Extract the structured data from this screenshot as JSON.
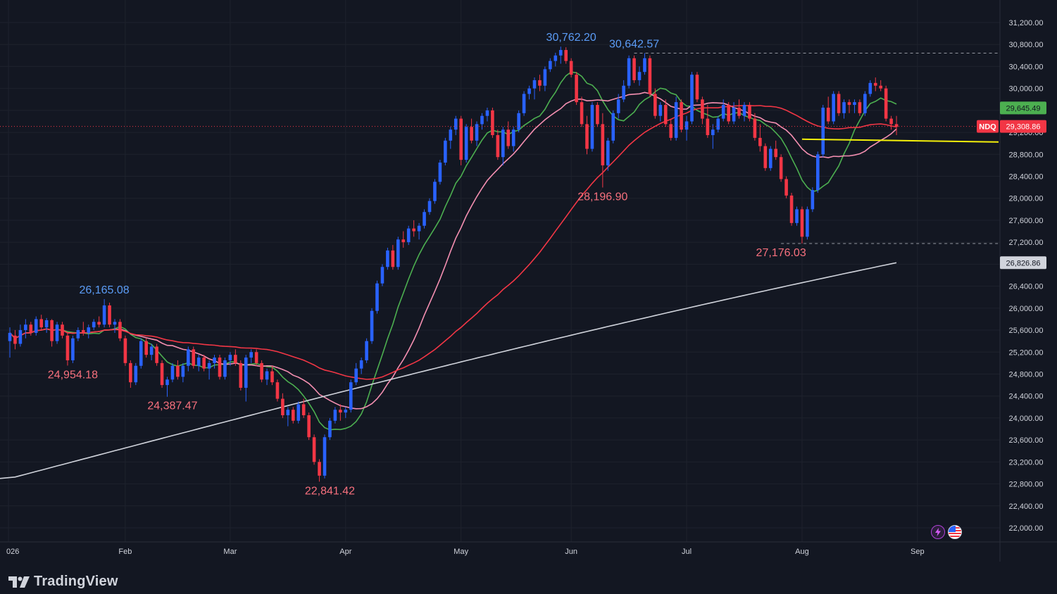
{
  "brand": {
    "name": "TradingView",
    "logo": "tradingview-logo-icon"
  },
  "symbol": "NDQ",
  "price_axis": {
    "ticks": [
      "31,200.00",
      "30,800.00",
      "30,400.00",
      "30,000.00",
      "29,600.00",
      "29,200.00",
      "28,800.00",
      "28,400.00",
      "28,000.00",
      "27,600.00",
      "27,200.00",
      "26,800.00",
      "26,400.00",
      "26,000.00",
      "25,600.00",
      "25,200.00",
      "24,800.00",
      "24,400.00",
      "24,000.00",
      "23,600.00",
      "23,200.00",
      "22,800.00",
      "22,400.00",
      "22,000.00"
    ],
    "tick_values": [
      31200,
      30800,
      30400,
      30000,
      29600,
      29200,
      28800,
      28400,
      28000,
      27600,
      27200,
      26800,
      26400,
      26000,
      25600,
      25200,
      24800,
      24400,
      24000,
      23600,
      23200,
      22800,
      22400,
      22000
    ],
    "tags": [
      {
        "label": "29,645.49",
        "value": 29645.49,
        "color": "#4caf50",
        "text_color": "#131722"
      },
      {
        "label": "29,308.86",
        "value": 29308.86,
        "color": "#f23645",
        "text_color": "#ffffff"
      },
      {
        "label": "26,826.86",
        "value": 26826.86,
        "color": "#d1d4dc",
        "text_color": "#131722"
      }
    ]
  },
  "time_axis": {
    "labels": [
      "026",
      "Feb",
      "Mar",
      "Apr",
      "May",
      "Jun",
      "Jul",
      "Aug",
      "Sep"
    ],
    "bar_index": [
      0,
      22,
      42,
      64,
      86,
      107,
      129,
      151,
      173
    ]
  },
  "annotations": [
    {
      "text": "26,165.08",
      "bar": 18,
      "value": 26165.08,
      "color": "#5b9cf6",
      "pos": "above"
    },
    {
      "text": "24,954.18",
      "bar": 12,
      "value": 24954.18,
      "color": "#f7707d",
      "pos": "below"
    },
    {
      "text": "24,387.47",
      "bar": 31,
      "value": 24387.47,
      "color": "#f7707d",
      "pos": "below"
    },
    {
      "text": "22,841.42",
      "bar": 61,
      "value": 22841.42,
      "color": "#f7707d",
      "pos": "below"
    },
    {
      "text": "30,762.20",
      "bar": 107,
      "value": 30762.2,
      "color": "#5b9cf6",
      "pos": "above"
    },
    {
      "text": "30,642.57",
      "bar": 119,
      "value": 30642.57,
      "color": "#5b9cf6",
      "pos": "above"
    },
    {
      "text": "28,196.90",
      "bar": 113,
      "value": 28196.9,
      "color": "#f7707d",
      "pos": "below"
    },
    {
      "text": "27,176.03",
      "bar": 147,
      "value": 27176.03,
      "color": "#f7707d",
      "pos": "below"
    }
  ],
  "colors": {
    "background": "#131722",
    "grid": "#1e222d",
    "up": "#2962ff",
    "down": "#f23645",
    "axis_text": "#d1d4dc",
    "support": "#f5f10a"
  },
  "icons": [
    "lightning-icon",
    "us-flag-icon"
  ],
  "chart_data": {
    "type": "candlestick",
    "title": "",
    "ylim": [
      21800,
      31500
    ],
    "ohlc": [
      [
        25400,
        25650,
        25100,
        25550
      ],
      [
        25500,
        25600,
        25250,
        25350
      ],
      [
        25350,
        25700,
        25300,
        25600
      ],
      [
        25600,
        25800,
        25450,
        25700
      ],
      [
        25700,
        25750,
        25500,
        25550
      ],
      [
        25550,
        25850,
        25500,
        25800
      ],
      [
        25800,
        25880,
        25600,
        25650
      ],
      [
        25650,
        25820,
        25550,
        25780
      ],
      [
        25780,
        25800,
        25300,
        25400
      ],
      [
        25400,
        25750,
        25350,
        25700
      ],
      [
        25700,
        25750,
        25450,
        25500
      ],
      [
        25500,
        25550,
        24954,
        25050
      ],
      [
        25050,
        25500,
        25000,
        25450
      ],
      [
        25450,
        25650,
        25400,
        25600
      ],
      [
        25600,
        25750,
        25500,
        25550
      ],
      [
        25550,
        25700,
        25450,
        25650
      ],
      [
        25650,
        25800,
        25600,
        25750
      ],
      [
        25750,
        25850,
        25650,
        25700
      ],
      [
        25700,
        26165,
        25650,
        26050
      ],
      [
        26050,
        26100,
        25650,
        25700
      ],
      [
        25700,
        25800,
        25550,
        25750
      ],
      [
        25750,
        25800,
        25400,
        25450
      ],
      [
        25450,
        25500,
        24950,
        25000
      ],
      [
        25000,
        25050,
        24550,
        24650
      ],
      [
        24650,
        25000,
        24600,
        24950
      ],
      [
        24950,
        25450,
        24900,
        25400
      ],
      [
        25400,
        25450,
        25100,
        25150
      ],
      [
        25150,
        25350,
        25050,
        25300
      ],
      [
        25300,
        25350,
        24950,
        25000
      ],
      [
        25000,
        25050,
        24550,
        24600
      ],
      [
        24600,
        24750,
        24387,
        24700
      ],
      [
        24700,
        25000,
        24650,
        24950
      ],
      [
        24950,
        25050,
        24700,
        24750
      ],
      [
        24750,
        25000,
        24650,
        24950
      ],
      [
        24950,
        25300,
        24850,
        25250
      ],
      [
        25250,
        25300,
        24900,
        24950
      ],
      [
        24950,
        25150,
        24850,
        25100
      ],
      [
        25100,
        25150,
        24850,
        24900
      ],
      [
        24900,
        25050,
        24700,
        25000
      ],
      [
        25000,
        25150,
        24900,
        25100
      ],
      [
        25100,
        25150,
        24700,
        24750
      ],
      [
        24750,
        25100,
        24700,
        25050
      ],
      [
        25050,
        25200,
        24950,
        25150
      ],
      [
        25150,
        25250,
        24950,
        25000
      ],
      [
        25000,
        25050,
        24500,
        24550
      ],
      [
        24550,
        25150,
        24300,
        25100
      ],
      [
        25100,
        25250,
        25000,
        25200
      ],
      [
        25200,
        25250,
        24950,
        25000
      ],
      [
        25000,
        25050,
        24650,
        24700
      ],
      [
        24700,
        24900,
        24600,
        24850
      ],
      [
        24850,
        24950,
        24600,
        24650
      ],
      [
        24650,
        24700,
        24300,
        24350
      ],
      [
        24350,
        24450,
        24000,
        24050
      ],
      [
        24050,
        24200,
        23850,
        24150
      ],
      [
        24150,
        24200,
        23900,
        23950
      ],
      [
        23950,
        24300,
        23900,
        24250
      ],
      [
        24250,
        24350,
        24000,
        24050
      ],
      [
        24050,
        24100,
        23600,
        23650
      ],
      [
        23650,
        23700,
        23150,
        23200
      ],
      [
        23200,
        23250,
        22841,
        22950
      ],
      [
        22950,
        23700,
        22900,
        23650
      ],
      [
        23650,
        24000,
        23600,
        23950
      ],
      [
        23950,
        24200,
        23900,
        24150
      ],
      [
        24150,
        24250,
        23950,
        24100
      ],
      [
        24100,
        24200,
        24000,
        24150
      ],
      [
        24150,
        24700,
        24100,
        24650
      ],
      [
        24650,
        25000,
        24600,
        24900
      ],
      [
        24900,
        25100,
        24800,
        25050
      ],
      [
        25050,
        25450,
        25000,
        25400
      ],
      [
        25400,
        26000,
        25350,
        25950
      ],
      [
        25950,
        26500,
        25900,
        26450
      ],
      [
        26450,
        26800,
        26400,
        26750
      ],
      [
        26750,
        27100,
        26700,
        27050
      ],
      [
        27050,
        27150,
        26700,
        26750
      ],
      [
        26750,
        27300,
        26700,
        27250
      ],
      [
        27250,
        27400,
        27100,
        27200
      ],
      [
        27200,
        27500,
        27150,
        27450
      ],
      [
        27450,
        27600,
        27300,
        27400
      ],
      [
        27400,
        27550,
        27250,
        27500
      ],
      [
        27500,
        27800,
        27450,
        27750
      ],
      [
        27750,
        28000,
        27700,
        27950
      ],
      [
        27950,
        28350,
        27900,
        28300
      ],
      [
        28300,
        28700,
        28250,
        28650
      ],
      [
        28650,
        29100,
        28600,
        29050
      ],
      [
        29050,
        29300,
        28900,
        29250
      ],
      [
        29250,
        29500,
        29150,
        29450
      ],
      [
        29450,
        29500,
        28600,
        28700
      ],
      [
        28700,
        29350,
        28650,
        29300
      ],
      [
        29300,
        29450,
        29000,
        29050
      ],
      [
        29050,
        29400,
        28950,
        29350
      ],
      [
        29350,
        29550,
        29250,
        29500
      ],
      [
        29500,
        29650,
        29400,
        29600
      ],
      [
        29600,
        29650,
        29100,
        29150
      ],
      [
        29150,
        29250,
        28700,
        28750
      ],
      [
        28750,
        29300,
        28600,
        29250
      ],
      [
        29250,
        29400,
        28900,
        28950
      ],
      [
        28950,
        29300,
        28850,
        29250
      ],
      [
        29250,
        29600,
        29200,
        29550
      ],
      [
        29550,
        29950,
        29500,
        29900
      ],
      [
        29900,
        30050,
        29800,
        30000
      ],
      [
        30000,
        30200,
        29800,
        30150
      ],
      [
        30150,
        30250,
        29950,
        30050
      ],
      [
        30050,
        30400,
        29950,
        30350
      ],
      [
        30350,
        30550,
        30300,
        30500
      ],
      [
        30500,
        30650,
        30400,
        30600
      ],
      [
        30600,
        30762,
        30450,
        30700
      ],
      [
        30700,
        30750,
        30450,
        30500
      ],
      [
        30500,
        30550,
        30200,
        30250
      ],
      [
        30250,
        30300,
        29700,
        29750
      ],
      [
        29750,
        29850,
        29300,
        29350
      ],
      [
        29350,
        29500,
        28800,
        28900
      ],
      [
        28900,
        29750,
        28850,
        29700
      ],
      [
        29700,
        29750,
        29300,
        29350
      ],
      [
        29350,
        29550,
        28196,
        28600
      ],
      [
        28600,
        29100,
        28500,
        29050
      ],
      [
        29050,
        29600,
        29000,
        29550
      ],
      [
        29550,
        29900,
        29450,
        29800
      ],
      [
        29800,
        30150,
        29750,
        30050
      ],
      [
        30050,
        30600,
        30000,
        30550
      ],
      [
        30550,
        30600,
        30100,
        30150
      ],
      [
        30150,
        30400,
        30050,
        30300
      ],
      [
        30300,
        30642,
        30250,
        30550
      ],
      [
        30550,
        30600,
        29850,
        29900
      ],
      [
        29900,
        30000,
        29450,
        29500
      ],
      [
        29500,
        29750,
        29400,
        29700
      ],
      [
        29700,
        29800,
        29300,
        29350
      ],
      [
        29350,
        29450,
        29050,
        29100
      ],
      [
        29100,
        29850,
        29050,
        29750
      ],
      [
        29750,
        29800,
        29200,
        29250
      ],
      [
        29250,
        29500,
        29050,
        29400
      ],
      [
        29400,
        30300,
        29350,
        30250
      ],
      [
        30250,
        30300,
        29750,
        29800
      ],
      [
        29800,
        29850,
        29350,
        29450
      ],
      [
        29450,
        29700,
        29100,
        29150
      ],
      [
        29150,
        29350,
        28900,
        29250
      ],
      [
        29250,
        29500,
        29200,
        29450
      ],
      [
        29450,
        29800,
        29400,
        29700
      ],
      [
        29700,
        29750,
        29350,
        29400
      ],
      [
        29400,
        29750,
        29350,
        29650
      ],
      [
        29650,
        29800,
        29450,
        29500
      ],
      [
        29500,
        29750,
        29400,
        29700
      ],
      [
        29700,
        29750,
        29400,
        29450
      ],
      [
        29450,
        29550,
        29050,
        29100
      ],
      [
        29100,
        29350,
        28850,
        28950
      ],
      [
        28950,
        29000,
        28500,
        28550
      ],
      [
        28550,
        28950,
        28500,
        28900
      ],
      [
        28900,
        29050,
        28700,
        28750
      ],
      [
        28750,
        28800,
        28300,
        28350
      ],
      [
        28350,
        28400,
        28000,
        28050
      ],
      [
        28050,
        28100,
        27500,
        27550
      ],
      [
        27550,
        27850,
        27500,
        27800
      ],
      [
        27800,
        27850,
        27176,
        27300
      ],
      [
        27300,
        27850,
        27250,
        27800
      ],
      [
        27800,
        28200,
        27750,
        28150
      ],
      [
        28150,
        28850,
        28100,
        28800
      ],
      [
        28800,
        29700,
        28750,
        29650
      ],
      [
        29650,
        29850,
        29350,
        29400
      ],
      [
        29400,
        29950,
        29350,
        29900
      ],
      [
        29900,
        29950,
        29500,
        29550
      ],
      [
        29550,
        29800,
        29450,
        29750
      ],
      [
        29750,
        29800,
        29550,
        29700
      ],
      [
        29700,
        29800,
        29550,
        29750
      ],
      [
        29750,
        29800,
        29500,
        29550
      ],
      [
        29550,
        29950,
        29500,
        29900
      ],
      [
        29900,
        30150,
        29850,
        30100
      ],
      [
        30100,
        30200,
        29950,
        30050
      ],
      [
        30050,
        30150,
        29950,
        30000
      ],
      [
        30000,
        30050,
        29400,
        29450
      ],
      [
        29450,
        29500,
        29250,
        29350
      ],
      [
        29350,
        29500,
        29150,
        29300
      ]
    ],
    "moving_averages": [
      {
        "color": "#4caf50",
        "period": 10
      },
      {
        "color": "#f48fb1",
        "period": 20
      },
      {
        "color": "#f23645",
        "period": 50
      },
      {
        "color": "#d1d4dc",
        "period": 200,
        "start": 22900,
        "end": 26826.86
      }
    ],
    "support_line": {
      "value": 29050,
      "from_bar": 151,
      "color": "#f5f10a"
    },
    "dashed_levels": [
      {
        "value": 30642.57,
        "from_bar": 119
      },
      {
        "value": 27176.03,
        "from_bar": 147
      }
    ],
    "last_price": 29308.86
  }
}
